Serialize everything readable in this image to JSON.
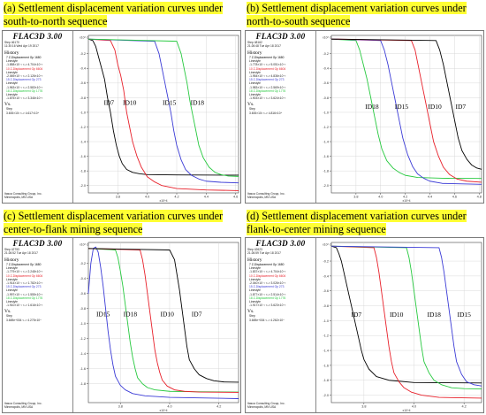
{
  "captions": {
    "a": "(a) Settlement displacement variation curves under south-to-north sequence",
    "b": "(b) Settlement displacement variation curves under north-to-south sequence",
    "c": "(c) Settlement displacement variation curves under center-to-flank mining sequence",
    "d": "(d) Settlement displacement variation curves under flank-to-center mining sequence"
  },
  "colors": {
    "caption_highlight": "#ffff33",
    "ID7": "#000000",
    "ID10": "#e8202a",
    "ID15": "#3b3bd6",
    "ID18": "#27c93f",
    "grid": "#d0d0d0"
  },
  "panels": [
    {
      "id": "a",
      "title": "FLAC3D 3.00",
      "step": "Step 46170",
      "time": "11:30:16 Wed Apr 19 2017",
      "history": "History",
      "entries": [
        {
          "label": "7 Z-Displacement Gp 1680",
          "style": "Linestyle",
          "range": "-1.858×10⁻¹ <-> 4.704×10⁻³",
          "color": "#000000"
        },
        {
          "label": "10 Z-Displacement Gp 6604",
          "style": "Linestyle",
          "range": "-2.069×10⁻¹ <-> 2.126×10⁻³",
          "color": "#e8202a"
        },
        {
          "label": "15 Z-Displacement Gp 273",
          "style": "Linestyle",
          "range": "-1.963×10⁻¹ <-> 2.583×10⁻³",
          "color": "#3b3bd6"
        },
        {
          "label": "18 Z-Displacement Gp 1776",
          "style": "Linestyle",
          "range": "-1.875×10⁻¹ <-> 3.346×10⁻³",
          "color": "#27c93f"
        }
      ],
      "vs": "Vs.",
      "vs_step": "Step",
      "vs_range": "3.600×10² <-> 4.617×10⁴",
      "company": "Itasca Consulting Group, Inc.",
      "city": "Minneapolis, MN USA"
    },
    {
      "id": "b",
      "title": "FLAC3D 3.00",
      "step": "Step 48162",
      "time": "21:26:48 Tue Apr 18 2017",
      "history": "History",
      "entries": [
        {
          "label": "7 Z-Displacement Gp 1680",
          "style": "Linestyle",
          "range": "-1.778×10⁻¹ <-> 5.051×10⁻³",
          "color": "#000000"
        },
        {
          "label": "10 Z-Displacement Gp 6604",
          "style": "Linestyle",
          "range": "-1.954×10⁻¹ <-> 4.836×10⁻³",
          "color": "#e8202a"
        },
        {
          "label": "15 Z-Displacement Gp 273",
          "style": "Linestyle",
          "range": "-1.983×10⁻¹ <-> 2.569×10⁻³",
          "color": "#3b3bd6"
        },
        {
          "label": "18 Z-Displacement Gp 1776",
          "style": "Linestyle",
          "range": "-1.903×10⁻¹ <-> 3.624×10⁻³",
          "color": "#27c93f"
        }
      ],
      "vs": "Vs.",
      "vs_step": "Step",
      "vs_range": "3.600×10² <-> 4.816×10⁴",
      "company": "Itasca Consulting Group, Inc.",
      "city": "Minneapolis, MN USA"
    },
    {
      "id": "c",
      "title": "FLAC3D 3.00",
      "step": "Step 42753",
      "time": "21:26:52 Tue Apr 18 2017",
      "history": "History",
      "entries": [
        {
          "label": "7 Z-Displacement Gp 1680",
          "style": "Linestyle",
          "range": "-1.779×10⁻¹ <-> 2.248×10⁻³",
          "color": "#000000"
        },
        {
          "label": "10 Z-Displacement Gp 6604",
          "style": "Linestyle",
          "range": "-1.914×10⁻¹ <-> 1.782×10⁻³",
          "color": "#e8202a"
        },
        {
          "label": "15 Z-Displacement Gp 273",
          "style": "Linestyle",
          "range": "-1.997×10⁻¹ <-> 1.555×10⁻³",
          "color": "#3b3bd6"
        },
        {
          "label": "18 Z-Displacement Gp 1776",
          "style": "Linestyle",
          "range": "-1.910×10⁻¹ <-> 1.616×10⁻³",
          "color": "#27c93f"
        }
      ],
      "vs": "Vs.",
      "vs_step": "Step",
      "vs_range": "3.669e+004 <-> 4.275×10⁴",
      "company": "Itasca Consulting Group, Inc.",
      "city": "Minneapolis, MN USA"
    },
    {
      "id": "d",
      "title": "FLAC3D 3.00",
      "step": "Step 42623",
      "time": "21:26:59 Tue Apr 18 2017",
      "history": "History",
      "entries": [
        {
          "label": "7 Z-Displacement Gp 1680",
          "style": "Linestyle",
          "range": "-1.837×10⁻¹ <-> 4.704×10⁻³",
          "color": "#000000"
        },
        {
          "label": "10 Z-Displacement Gp 6604",
          "style": "Linestyle",
          "range": "-2.040×10⁻¹ <-> 3.026×10⁻³",
          "color": "#e8202a"
        },
        {
          "label": "15 Z-Displacement Gp 273",
          "style": "Linestyle",
          "range": "-1.877×10⁻¹ <-> 2.514×10⁻³",
          "color": "#3b3bd6"
        },
        {
          "label": "18 Z-Displacement Gp 1776",
          "style": "Linestyle",
          "range": "-1.917×10⁻¹ <-> 3.623×10⁻³",
          "color": "#27c93f"
        }
      ],
      "vs": "Vs.",
      "vs_step": "Step",
      "vs_range": "3.669e+004 <-> 4.262×10⁴",
      "company": "Itasca Consulting Group, Inc.",
      "city": "Minneapolis, MN USA"
    }
  ],
  "chart_data": [
    {
      "type": "line",
      "panel": "a",
      "xlabel": "x10^4",
      "ylabel": "x10^-1",
      "xlim": [
        3.6,
        4.62
      ],
      "ylim": [
        -2.1,
        0.05
      ],
      "x_ticks": [
        3.8,
        4.0,
        4.2,
        4.4,
        4.6
      ],
      "y_ticks": [
        -0.2,
        -0.4,
        -0.6,
        -0.8,
        -1.0,
        -1.2,
        -1.4,
        -1.6,
        -1.8,
        -2.0
      ],
      "grid": true,
      "series": [
        {
          "name": "ID7",
          "label_at": [
            3.74,
            -0.9
          ],
          "x": [
            3.6,
            3.63,
            3.65,
            3.67,
            3.69,
            3.71,
            3.73,
            3.75,
            3.77,
            3.79,
            3.81,
            3.83,
            3.86,
            3.9,
            3.95,
            4.0,
            4.2,
            4.62
          ],
          "y": [
            0.0,
            -0.02,
            -0.1,
            -0.25,
            -0.4,
            -0.55,
            -0.8,
            -1.0,
            -1.25,
            -1.45,
            -1.6,
            -1.7,
            -1.78,
            -1.82,
            -1.84,
            -1.85,
            -1.855,
            -1.858
          ]
        },
        {
          "name": "ID10",
          "label_at": [
            3.88,
            -0.9
          ],
          "x": [
            3.6,
            3.75,
            3.78,
            3.8,
            3.82,
            3.84,
            3.86,
            3.88,
            3.9,
            3.93,
            3.96,
            4.0,
            4.05,
            4.1,
            4.2,
            4.4,
            4.62
          ],
          "y": [
            0.0,
            -0.02,
            -0.15,
            -0.35,
            -0.5,
            -0.7,
            -1.0,
            -1.2,
            -1.4,
            -1.6,
            -1.75,
            -1.88,
            -1.95,
            -2.0,
            -2.04,
            -2.06,
            -2.069
          ]
        },
        {
          "name": "ID15",
          "label_at": [
            4.15,
            -0.9
          ],
          "x": [
            3.6,
            4.05,
            4.08,
            4.1,
            4.12,
            4.14,
            4.16,
            4.18,
            4.2,
            4.23,
            4.26,
            4.3,
            4.35,
            4.4,
            4.5,
            4.62
          ],
          "y": [
            0.0,
            -0.03,
            -0.2,
            -0.4,
            -0.6,
            -0.8,
            -1.0,
            -1.25,
            -1.45,
            -1.65,
            -1.78,
            -1.86,
            -1.91,
            -1.94,
            -1.955,
            -1.963
          ]
        },
        {
          "name": "ID18",
          "label_at": [
            4.34,
            -0.9
          ],
          "x": [
            3.6,
            4.2,
            4.23,
            4.25,
            4.27,
            4.29,
            4.31,
            4.33,
            4.35,
            4.38,
            4.42,
            4.46,
            4.5,
            4.55,
            4.62
          ],
          "y": [
            0.0,
            -0.03,
            -0.2,
            -0.4,
            -0.6,
            -0.85,
            -1.05,
            -1.25,
            -1.45,
            -1.62,
            -1.75,
            -1.82,
            -1.85,
            -1.87,
            -1.875
          ]
        }
      ]
    },
    {
      "type": "line",
      "panel": "b",
      "xlabel": "x10^4",
      "ylabel": "x10^-1",
      "xlim": [
        3.6,
        4.82
      ],
      "ylim": [
        -2.1,
        0.05
      ],
      "x_ticks": [
        3.8,
        4.0,
        4.2,
        4.4,
        4.6,
        4.8
      ],
      "y_ticks": [
        -0.2,
        -0.4,
        -0.6,
        -0.8,
        -1.0,
        -1.2,
        -1.4,
        -1.6,
        -1.8,
        -2.0
      ],
      "grid": true,
      "series": [
        {
          "name": "ID18",
          "label_at": [
            3.93,
            -0.95
          ],
          "x": [
            3.6,
            3.8,
            3.83,
            3.86,
            3.89,
            3.92,
            3.95,
            3.98,
            4.01,
            4.05,
            4.1,
            4.15,
            4.2,
            4.3,
            4.5,
            4.82
          ],
          "y": [
            0.0,
            -0.02,
            -0.15,
            -0.35,
            -0.55,
            -0.8,
            -1.05,
            -1.3,
            -1.5,
            -1.66,
            -1.76,
            -1.82,
            -1.86,
            -1.89,
            -1.9,
            -1.903
          ]
        },
        {
          "name": "ID15",
          "label_at": [
            4.17,
            -0.95
          ],
          "x": [
            3.6,
            4.0,
            4.03,
            4.06,
            4.09,
            4.12,
            4.15,
            4.18,
            4.22,
            4.26,
            4.3,
            4.35,
            4.4,
            4.5,
            4.82
          ],
          "y": [
            0.0,
            -0.02,
            -0.15,
            -0.35,
            -0.6,
            -0.85,
            -1.1,
            -1.35,
            -1.58,
            -1.74,
            -1.84,
            -1.9,
            -1.94,
            -1.97,
            -1.983
          ]
        },
        {
          "name": "ID10",
          "label_at": [
            4.44,
            -0.95
          ],
          "x": [
            3.6,
            4.25,
            4.28,
            4.31,
            4.34,
            4.37,
            4.4,
            4.43,
            4.47,
            4.51,
            4.56,
            4.62,
            4.7,
            4.82
          ],
          "y": [
            0.0,
            -0.02,
            -0.15,
            -0.4,
            -0.65,
            -0.9,
            -1.15,
            -1.4,
            -1.6,
            -1.75,
            -1.85,
            -1.91,
            -1.94,
            -1.954
          ]
        },
        {
          "name": "ID7",
          "label_at": [
            4.65,
            -0.95
          ],
          "x": [
            3.6,
            4.45,
            4.48,
            4.51,
            4.54,
            4.57,
            4.6,
            4.63,
            4.66,
            4.7,
            4.74,
            4.78,
            4.82
          ],
          "y": [
            0.0,
            -0.02,
            -0.15,
            -0.35,
            -0.6,
            -0.85,
            -1.1,
            -1.35,
            -1.52,
            -1.64,
            -1.72,
            -1.76,
            -1.778
          ]
        }
      ]
    },
    {
      "type": "line",
      "panel": "c",
      "xlabel": "x10^4",
      "ylabel": "x10^-1",
      "xlim": [
        3.67,
        4.28
      ],
      "ylim": [
        -2.05,
        0.08
      ],
      "x_ticks": [
        3.8,
        4.0,
        4.2
      ],
      "y_ticks": [
        -0.2,
        -0.4,
        -0.6,
        -0.8,
        -1.0,
        -1.2,
        -1.4,
        -1.6,
        -1.8
      ],
      "grid": true,
      "series": [
        {
          "name": "ID15",
          "label_at": [
            3.73,
            -0.9
          ],
          "x": [
            3.67,
            3.68,
            3.69,
            3.7,
            3.71,
            3.72,
            3.73,
            3.74,
            3.75,
            3.76,
            3.77,
            3.78,
            3.8,
            3.82,
            3.85,
            3.9,
            4.0,
            4.28
          ],
          "y": [
            -0.6,
            -0.2,
            0.0,
            0.02,
            -0.05,
            -0.25,
            -0.5,
            -0.8,
            -1.1,
            -1.35,
            -1.55,
            -1.7,
            -1.82,
            -1.88,
            -1.93,
            -1.96,
            -1.98,
            -1.997
          ]
        },
        {
          "name": "ID18",
          "label_at": [
            3.84,
            -0.9
          ],
          "x": [
            3.67,
            3.78,
            3.79,
            3.8,
            3.81,
            3.82,
            3.83,
            3.84,
            3.85,
            3.86,
            3.87,
            3.89,
            3.91,
            3.94,
            4.0,
            4.1,
            4.28
          ],
          "y": [
            0.0,
            -0.02,
            -0.12,
            -0.3,
            -0.5,
            -0.75,
            -1.0,
            -1.25,
            -1.45,
            -1.6,
            -1.72,
            -1.8,
            -1.85,
            -1.88,
            -1.9,
            -1.905,
            -1.91
          ]
        },
        {
          "name": "ID10",
          "label_at": [
            3.99,
            -0.9
          ],
          "x": [
            3.67,
            3.88,
            3.89,
            3.9,
            3.91,
            3.92,
            3.93,
            3.94,
            3.95,
            3.96,
            3.97,
            3.99,
            4.02,
            4.06,
            4.12,
            4.28
          ],
          "y": [
            0.0,
            -0.02,
            -0.15,
            -0.35,
            -0.6,
            -0.85,
            -1.1,
            -1.35,
            -1.52,
            -1.65,
            -1.75,
            -1.83,
            -1.88,
            -1.9,
            -1.91,
            -1.914
          ]
        },
        {
          "name": "ID7",
          "label_at": [
            4.11,
            -0.9
          ],
          "x": [
            3.67,
            4.0,
            4.02,
            4.03,
            4.04,
            4.05,
            4.06,
            4.07,
            4.08,
            4.1,
            4.12,
            4.15,
            4.18,
            4.22,
            4.28
          ],
          "y": [
            0.0,
            -0.02,
            -0.15,
            -0.35,
            -0.55,
            -0.8,
            -1.05,
            -1.3,
            -1.48,
            -1.6,
            -1.68,
            -1.73,
            -1.76,
            -1.775,
            -1.779
          ]
        }
      ]
    },
    {
      "type": "line",
      "panel": "d",
      "xlabel": "x10^4",
      "ylabel": "x10^-1",
      "xlim": [
        3.67,
        4.27
      ],
      "ylim": [
        -2.1,
        0.05
      ],
      "x_ticks": [
        3.8,
        4.0,
        4.2
      ],
      "y_ticks": [
        -0.2,
        -0.4,
        -0.6,
        -0.8,
        -1.0,
        -1.2,
        -1.4,
        -1.6,
        -1.8,
        -2.0
      ],
      "grid": true,
      "series": [
        {
          "name": "ID7",
          "label_at": [
            3.77,
            -0.95
          ],
          "x": [
            3.67,
            3.69,
            3.7,
            3.71,
            3.72,
            3.73,
            3.74,
            3.75,
            3.76,
            3.77,
            3.78,
            3.79,
            3.8,
            3.82,
            3.85,
            3.9,
            4.0,
            4.27
          ],
          "y": [
            0.0,
            -0.02,
            -0.1,
            -0.2,
            -0.35,
            -0.5,
            -0.65,
            -0.8,
            -0.95,
            -1.1,
            -1.25,
            -1.4,
            -1.52,
            -1.65,
            -1.75,
            -1.8,
            -1.83,
            -1.837
          ]
        },
        {
          "name": "ID10",
          "label_at": [
            3.93,
            -0.95
          ],
          "x": [
            3.67,
            3.84,
            3.85,
            3.86,
            3.87,
            3.88,
            3.89,
            3.9,
            3.91,
            3.92,
            3.94,
            3.96,
            3.99,
            4.03,
            4.1,
            4.27
          ],
          "y": [
            0.0,
            -0.02,
            -0.15,
            -0.35,
            -0.6,
            -0.85,
            -1.1,
            -1.35,
            -1.55,
            -1.7,
            -1.82,
            -1.9,
            -1.96,
            -2.0,
            -2.03,
            -2.04
          ]
        },
        {
          "name": "ID18",
          "label_at": [
            4.08,
            -0.95
          ],
          "x": [
            3.67,
            3.97,
            3.98,
            3.99,
            4.0,
            4.01,
            4.02,
            4.03,
            4.04,
            4.06,
            4.08,
            4.11,
            4.15,
            4.2,
            4.27
          ],
          "y": [
            0.0,
            -0.02,
            -0.15,
            -0.35,
            -0.6,
            -0.85,
            -1.1,
            -1.35,
            -1.55,
            -1.7,
            -1.8,
            -1.86,
            -1.9,
            -1.912,
            -1.917
          ]
        },
        {
          "name": "ID15",
          "label_at": [
            4.2,
            -0.95
          ],
          "x": [
            3.67,
            4.1,
            4.11,
            4.12,
            4.13,
            4.14,
            4.15,
            4.16,
            4.17,
            4.19,
            4.21,
            4.24,
            4.27
          ],
          "y": [
            0.0,
            -0.02,
            -0.15,
            -0.35,
            -0.6,
            -0.85,
            -1.1,
            -1.35,
            -1.55,
            -1.72,
            -1.82,
            -1.86,
            -1.877
          ]
        }
      ]
    }
  ]
}
